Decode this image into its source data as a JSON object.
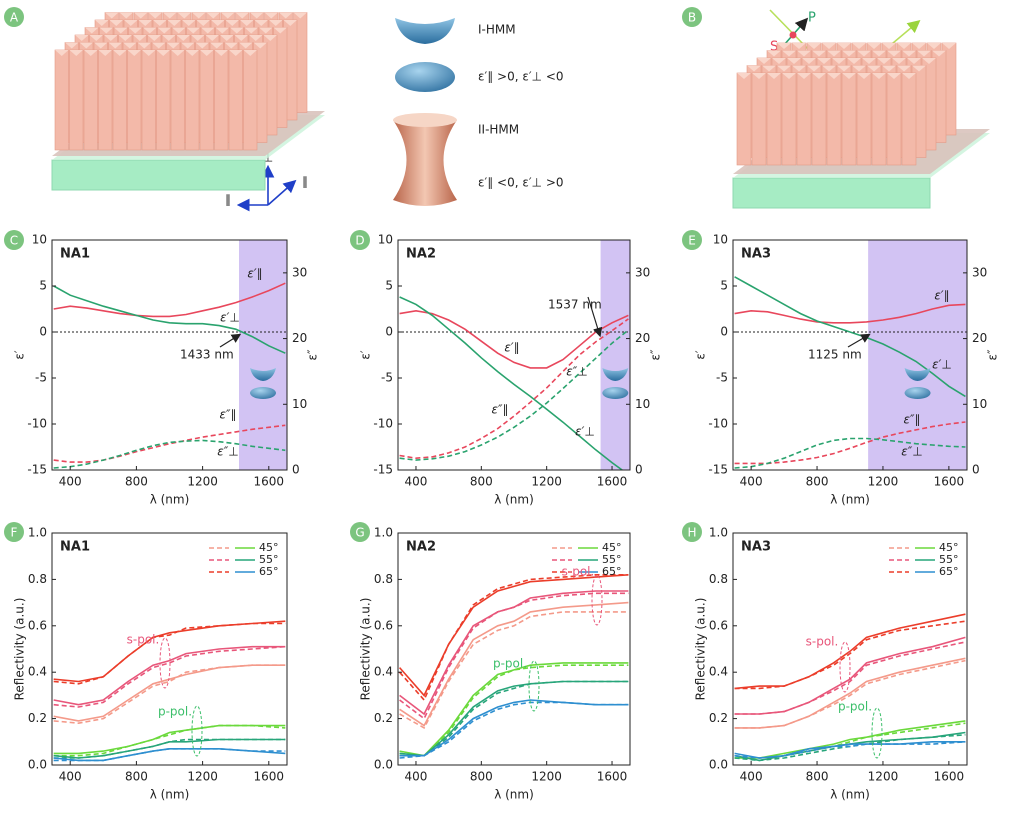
{
  "schematic": {
    "panels": [
      "A",
      "B"
    ],
    "axes": [
      "⊥",
      "∥",
      "∥"
    ],
    "polarization": [
      "S",
      "P"
    ],
    "legend": [
      {
        "label": "I-HMM"
      },
      {
        "label": "ε′∥ >0, ε′⊥ <0"
      },
      {
        "label": "II-HMM"
      },
      {
        "label": "ε′∥ <0, ε′⊥ >0"
      }
    ]
  },
  "chart_data": [
    {
      "type": "dual-axis-line",
      "panel": "C",
      "title": "NA1",
      "x_label": "λ (nm)",
      "y_label": "ε′",
      "y2_label": "ε″",
      "x": [
        300,
        400,
        500,
        600,
        700,
        800,
        900,
        1000,
        1100,
        1200,
        1300,
        1400,
        1500,
        1600,
        1700
      ],
      "xlim": [
        290,
        1710
      ],
      "xticks": [
        400,
        800,
        1200,
        1600
      ],
      "ylim": [
        -15,
        10
      ],
      "yticks": [
        -15,
        -10,
        -5,
        0,
        5,
        10
      ],
      "y2lim": [
        0,
        35
      ],
      "y2ticks": [
        0,
        10,
        20,
        30
      ],
      "shaded_range": [
        1420,
        1710
      ],
      "shade_color": "#d2c3f3",
      "annotation": {
        "value": 1433,
        "label": "1433 nm"
      },
      "series": [
        {
          "name": "ε′∥",
          "color": "#e8475c",
          "line_style": "solid",
          "values": [
            2.5,
            2.8,
            2.6,
            2.3,
            2.0,
            1.8,
            1.7,
            1.7,
            1.9,
            2.3,
            2.7,
            3.2,
            3.8,
            4.5,
            5.3
          ]
        },
        {
          "name": "ε′⊥",
          "color": "#2aa36e",
          "line_style": "solid",
          "values": [
            5.0,
            4.0,
            3.4,
            2.8,
            2.3,
            1.8,
            1.3,
            1.0,
            0.9,
            0.9,
            0.7,
            0.3,
            -0.5,
            -1.5,
            -2.3
          ]
        },
        {
          "name": "ε″∥",
          "color": "#e8475c",
          "line_style": "dashed",
          "axis": "y2",
          "values": [
            1.5,
            1.2,
            1.2,
            1.5,
            2.1,
            2.8,
            3.4,
            4.0,
            4.5,
            5.0,
            5.4,
            5.8,
            6.2,
            6.5,
            6.8
          ]
        },
        {
          "name": "ε″⊥",
          "color": "#2aa36e",
          "line_style": "dashed",
          "axis": "y2",
          "values": [
            0.3,
            0.5,
            0.9,
            1.5,
            2.2,
            3.0,
            3.7,
            4.2,
            4.4,
            4.5,
            4.3,
            4.0,
            3.6,
            3.3,
            3.0
          ]
        }
      ]
    },
    {
      "type": "dual-axis-line",
      "panel": "D",
      "title": "NA2",
      "x_label": "λ (nm)",
      "y_label": "ε′",
      "y2_label": "ε″",
      "x": [
        300,
        400,
        500,
        600,
        700,
        800,
        900,
        1000,
        1100,
        1200,
        1300,
        1400,
        1500,
        1600,
        1700
      ],
      "xlim": [
        290,
        1710
      ],
      "xticks": [
        400,
        800,
        1200,
        1600
      ],
      "ylim": [
        -15,
        10
      ],
      "yticks": [
        -15,
        -10,
        -5,
        0,
        5,
        10
      ],
      "y2lim": [
        0,
        35
      ],
      "y2ticks": [
        0,
        10,
        20,
        30
      ],
      "shaded_range": [
        1530,
        1710
      ],
      "shade_color": "#d2c3f3",
      "annotation": {
        "value": 1537,
        "label": "1537 nm"
      },
      "series": [
        {
          "name": "ε′∥",
          "color": "#e8475c",
          "line_style": "solid",
          "values": [
            2.0,
            2.3,
            2.0,
            1.3,
            0.3,
            -1.0,
            -2.3,
            -3.3,
            -3.9,
            -3.9,
            -3.0,
            -1.5,
            0.0,
            1.0,
            1.8
          ]
        },
        {
          "name": "ε′⊥",
          "color": "#2aa36e",
          "line_style": "solid",
          "values": [
            3.8,
            3.0,
            1.8,
            0.3,
            -1.2,
            -2.8,
            -4.3,
            -5.7,
            -7.0,
            -8.4,
            -9.8,
            -11.3,
            -12.8,
            -14.2,
            -15.5
          ]
        },
        {
          "name": "ε″∥",
          "color": "#e8475c",
          "line_style": "dashed",
          "axis": "y2",
          "values": [
            2.2,
            1.8,
            2.0,
            2.6,
            3.5,
            4.8,
            6.3,
            8.2,
            10.3,
            12.5,
            15.0,
            17.5,
            19.5,
            21.2,
            23.0
          ]
        },
        {
          "name": "ε″⊥",
          "color": "#2aa36e",
          "line_style": "dashed",
          "axis": "y2",
          "values": [
            1.8,
            1.5,
            1.7,
            2.1,
            2.8,
            3.8,
            5.0,
            6.5,
            8.2,
            10.2,
            12.4,
            14.7,
            17.0,
            19.3,
            21.3
          ]
        }
      ]
    },
    {
      "type": "dual-axis-line",
      "panel": "E",
      "title": "NA3",
      "x_label": "λ (nm)",
      "y_label": "ε′",
      "y2_label": "ε″",
      "x": [
        300,
        400,
        500,
        600,
        700,
        800,
        900,
        1000,
        1100,
        1200,
        1300,
        1400,
        1500,
        1600,
        1700
      ],
      "xlim": [
        290,
        1710
      ],
      "xticks": [
        400,
        800,
        1200,
        1600
      ],
      "ylim": [
        -15,
        10
      ],
      "yticks": [
        -15,
        -10,
        -5,
        0,
        5,
        10
      ],
      "y2lim": [
        0,
        35
      ],
      "y2ticks": [
        0,
        10,
        20,
        30
      ],
      "shaded_range": [
        1110,
        1710
      ],
      "shade_color": "#d2c3f3",
      "annotation": {
        "value": 1125,
        "label": "1125 nm"
      },
      "series": [
        {
          "name": "ε′∥",
          "color": "#e8475c",
          "line_style": "solid",
          "values": [
            2.0,
            2.3,
            2.2,
            1.8,
            1.4,
            1.1,
            1.0,
            1.0,
            1.1,
            1.3,
            1.6,
            2.0,
            2.5,
            2.9,
            3.0
          ]
        },
        {
          "name": "ε′⊥",
          "color": "#2aa36e",
          "line_style": "solid",
          "values": [
            6.0,
            5.0,
            4.0,
            3.0,
            2.0,
            1.2,
            0.6,
            0.0,
            -0.6,
            -1.3,
            -2.2,
            -3.2,
            -4.5,
            -5.9,
            -7.0
          ]
        },
        {
          "name": "ε″∥",
          "color": "#e8475c",
          "line_style": "dashed",
          "axis": "y2",
          "values": [
            1.0,
            1.0,
            1.0,
            1.2,
            1.5,
            1.9,
            2.5,
            3.3,
            4.2,
            5.0,
            5.6,
            6.1,
            6.6,
            7.0,
            7.3
          ]
        },
        {
          "name": "ε″⊥",
          "color": "#2aa36e",
          "line_style": "dashed",
          "axis": "y2",
          "values": [
            0.3,
            0.5,
            1.0,
            1.8,
            2.8,
            3.8,
            4.5,
            4.8,
            4.8,
            4.6,
            4.3,
            4.0,
            3.8,
            3.6,
            3.5
          ]
        }
      ]
    },
    {
      "type": "line",
      "panel": "F",
      "title": "NA1",
      "x_label": "λ (nm)",
      "y_label": "Reflectivity (a.u.)",
      "x": [
        300,
        450,
        600,
        750,
        900,
        1000,
        1100,
        1300,
        1500,
        1700
      ],
      "xlim": [
        290,
        1710
      ],
      "xticks": [
        400,
        800,
        1200,
        1600
      ],
      "ylim": [
        0,
        1
      ],
      "yticks": [
        {
          "value": 0,
          "label": "0.0"
        },
        0.2,
        0.4,
        0.6,
        0.8,
        {
          "value": 1,
          "label": "1.0"
        }
      ],
      "annotations": [
        "s-pol.",
        "p-pol."
      ],
      "series": [
        {
          "name": "45°",
          "s_color": "#f49a8a",
          "p_color": "#6bd93c",
          "s_measured": [
            0.21,
            0.19,
            0.21,
            0.28,
            0.35,
            0.37,
            0.39,
            0.42,
            0.43,
            0.43
          ],
          "s_fit": [
            0.19,
            0.18,
            0.2,
            0.27,
            0.34,
            0.36,
            0.4,
            0.42,
            0.43,
            0.43
          ],
          "p_measured": [
            0.05,
            0.05,
            0.06,
            0.08,
            0.11,
            0.14,
            0.15,
            0.17,
            0.17,
            0.17
          ],
          "p_fit": [
            0.04,
            0.04,
            0.05,
            0.08,
            0.11,
            0.13,
            0.15,
            0.17,
            0.17,
            0.16
          ]
        },
        {
          "name": "55°",
          "s_color": "#e8567a",
          "p_color": "#27a57a",
          "s_measured": [
            0.28,
            0.26,
            0.28,
            0.36,
            0.43,
            0.45,
            0.48,
            0.5,
            0.51,
            0.51
          ],
          "s_fit": [
            0.26,
            0.25,
            0.27,
            0.35,
            0.42,
            0.44,
            0.47,
            0.49,
            0.5,
            0.51
          ],
          "p_measured": [
            0.04,
            0.03,
            0.04,
            0.06,
            0.08,
            0.1,
            0.1,
            0.11,
            0.11,
            0.11
          ],
          "p_fit": [
            0.03,
            0.03,
            0.04,
            0.06,
            0.08,
            0.1,
            0.11,
            0.11,
            0.11,
            0.11
          ]
        },
        {
          "name": "65°",
          "s_color": "#eb3d2a",
          "p_color": "#2e8fd0",
          "s_measured": [
            0.37,
            0.36,
            0.38,
            0.47,
            0.55,
            0.57,
            0.58,
            0.6,
            0.61,
            0.62
          ],
          "s_fit": [
            0.36,
            0.35,
            0.38,
            0.47,
            0.55,
            0.56,
            0.59,
            0.6,
            0.61,
            0.61
          ],
          "p_measured": [
            0.03,
            0.02,
            0.02,
            0.04,
            0.06,
            0.07,
            0.07,
            0.07,
            0.06,
            0.05
          ],
          "p_fit": [
            0.02,
            0.02,
            0.02,
            0.04,
            0.06,
            0.07,
            0.07,
            0.07,
            0.06,
            0.06
          ]
        }
      ]
    },
    {
      "type": "line",
      "panel": "G",
      "title": "NA2",
      "x_label": "λ (nm)",
      "y_label": "Reflectivity (a.u.)",
      "x": [
        300,
        450,
        600,
        750,
        900,
        1000,
        1100,
        1300,
        1500,
        1700
      ],
      "xlim": [
        290,
        1710
      ],
      "xticks": [
        400,
        800,
        1200,
        1600
      ],
      "ylim": [
        0,
        1
      ],
      "yticks": [
        {
          "value": 0,
          "label": "0.0"
        },
        0.2,
        0.4,
        0.6,
        0.8,
        {
          "value": 1,
          "label": "1.0"
        }
      ],
      "annotations": [
        "s-pol.",
        "p-pol."
      ],
      "series": [
        {
          "name": "45°",
          "s_color": "#f49a8a",
          "p_color": "#6bd93c",
          "s_measured": [
            0.24,
            0.17,
            0.37,
            0.54,
            0.6,
            0.62,
            0.66,
            0.68,
            0.69,
            0.7
          ],
          "s_fit": [
            0.22,
            0.16,
            0.36,
            0.52,
            0.58,
            0.6,
            0.64,
            0.66,
            0.66,
            0.66
          ],
          "p_measured": [
            0.06,
            0.04,
            0.15,
            0.3,
            0.39,
            0.41,
            0.43,
            0.44,
            0.44,
            0.44
          ],
          "p_fit": [
            0.05,
            0.04,
            0.14,
            0.29,
            0.38,
            0.41,
            0.42,
            0.43,
            0.43,
            0.43
          ]
        },
        {
          "name": "55°",
          "s_color": "#e8567a",
          "p_color": "#27a57a",
          "s_measured": [
            0.3,
            0.22,
            0.43,
            0.6,
            0.66,
            0.68,
            0.72,
            0.74,
            0.75,
            0.75
          ],
          "s_fit": [
            0.28,
            0.2,
            0.42,
            0.59,
            0.66,
            0.68,
            0.71,
            0.73,
            0.74,
            0.74
          ],
          "p_measured": [
            0.05,
            0.04,
            0.13,
            0.25,
            0.32,
            0.34,
            0.35,
            0.36,
            0.36,
            0.36
          ],
          "p_fit": [
            0.04,
            0.04,
            0.12,
            0.24,
            0.31,
            0.33,
            0.35,
            0.36,
            0.36,
            0.36
          ]
        },
        {
          "name": "65°",
          "s_color": "#eb3d2a",
          "p_color": "#2e8fd0",
          "s_measured": [
            0.42,
            0.3,
            0.52,
            0.68,
            0.75,
            0.77,
            0.79,
            0.8,
            0.81,
            0.82
          ],
          "s_fit": [
            0.4,
            0.28,
            0.52,
            0.69,
            0.76,
            0.78,
            0.8,
            0.81,
            0.82,
            0.82
          ],
          "p_measured": [
            0.04,
            0.04,
            0.11,
            0.2,
            0.25,
            0.27,
            0.28,
            0.27,
            0.26,
            0.26
          ],
          "p_fit": [
            0.03,
            0.04,
            0.1,
            0.19,
            0.24,
            0.26,
            0.27,
            0.27,
            0.26,
            0.26
          ]
        }
      ]
    },
    {
      "type": "line",
      "panel": "H",
      "title": "NA3",
      "x_label": "λ (nm)",
      "y_label": "Reflectivity (a.u.)",
      "x": [
        300,
        450,
        600,
        750,
        900,
        1000,
        1100,
        1300,
        1500,
        1700
      ],
      "xlim": [
        290,
        1710
      ],
      "xticks": [
        400,
        800,
        1200,
        1600
      ],
      "ylim": [
        0,
        1
      ],
      "yticks": [
        {
          "value": 0,
          "label": "0.0"
        },
        0.2,
        0.4,
        0.6,
        0.8,
        {
          "value": 1,
          "label": "1.0"
        }
      ],
      "annotations": [
        "s-pol.",
        "p-pol."
      ],
      "series": [
        {
          "name": "45°",
          "s_color": "#f49a8a",
          "p_color": "#6bd93c",
          "s_measured": [
            0.16,
            0.16,
            0.17,
            0.21,
            0.27,
            0.31,
            0.36,
            0.4,
            0.43,
            0.46
          ],
          "s_fit": [
            0.16,
            0.16,
            0.17,
            0.21,
            0.26,
            0.3,
            0.35,
            0.39,
            0.42,
            0.45
          ],
          "p_measured": [
            0.03,
            0.03,
            0.05,
            0.07,
            0.09,
            0.11,
            0.12,
            0.15,
            0.17,
            0.19
          ],
          "p_fit": [
            0.03,
            0.03,
            0.04,
            0.06,
            0.08,
            0.1,
            0.12,
            0.14,
            0.16,
            0.18
          ]
        },
        {
          "name": "55°",
          "s_color": "#e8567a",
          "p_color": "#27a57a",
          "s_measured": [
            0.22,
            0.22,
            0.23,
            0.27,
            0.33,
            0.37,
            0.44,
            0.48,
            0.51,
            0.55
          ],
          "s_fit": [
            0.22,
            0.22,
            0.23,
            0.27,
            0.32,
            0.36,
            0.43,
            0.47,
            0.5,
            0.53
          ],
          "p_measured": [
            0.04,
            0.02,
            0.04,
            0.06,
            0.08,
            0.09,
            0.1,
            0.11,
            0.12,
            0.14
          ],
          "p_fit": [
            0.03,
            0.02,
            0.03,
            0.05,
            0.07,
            0.08,
            0.09,
            0.11,
            0.12,
            0.13
          ]
        },
        {
          "name": "65°",
          "s_color": "#eb3d2a",
          "p_color": "#2e8fd0",
          "s_measured": [
            0.33,
            0.34,
            0.34,
            0.38,
            0.44,
            0.49,
            0.55,
            0.59,
            0.62,
            0.65
          ],
          "s_fit": [
            0.33,
            0.33,
            0.34,
            0.38,
            0.43,
            0.48,
            0.54,
            0.58,
            0.6,
            0.62
          ],
          "p_measured": [
            0.05,
            0.03,
            0.04,
            0.07,
            0.08,
            0.09,
            0.09,
            0.09,
            0.1,
            0.1
          ],
          "p_fit": [
            0.04,
            0.03,
            0.04,
            0.06,
            0.08,
            0.08,
            0.09,
            0.09,
            0.09,
            0.1
          ]
        }
      ]
    }
  ]
}
